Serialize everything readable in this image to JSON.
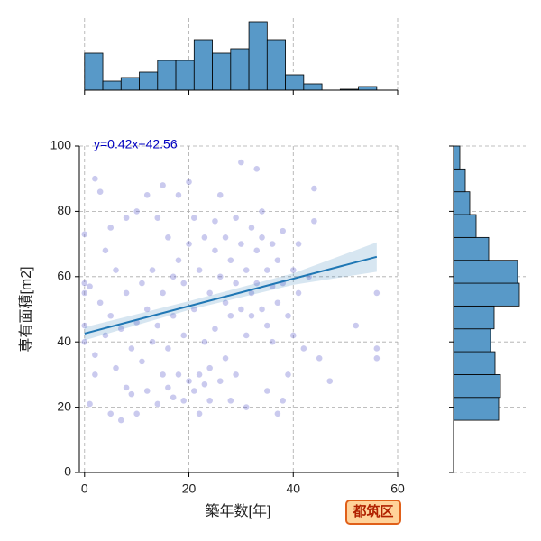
{
  "chart_data": [
    {
      "type": "scatter",
      "x_label": "築年数[年]",
      "y_label": "専有面積[m2]",
      "annotation": "y=0.42x+42.56",
      "badge": "都筑区",
      "color": "#5050c8",
      "line_color": "#1f77b4",
      "grid": true,
      "xlim": [
        -1,
        60
      ],
      "ylim": [
        0,
        100
      ],
      "xticks": [
        0,
        20,
        40,
        60
      ],
      "yticks": [
        0,
        20,
        40,
        60,
        80,
        100
      ],
      "x": [
        0,
        0,
        0,
        0,
        0,
        1,
        1,
        2,
        2,
        2,
        3,
        3,
        4,
        4,
        5,
        5,
        5,
        6,
        6,
        7,
        7,
        8,
        8,
        8,
        9,
        9,
        10,
        10,
        10,
        11,
        11,
        12,
        12,
        12,
        13,
        13,
        14,
        14,
        14,
        15,
        15,
        15,
        16,
        16,
        16,
        17,
        17,
        17,
        18,
        18,
        18,
        19,
        19,
        19,
        20,
        20,
        20,
        21,
        21,
        21,
        22,
        22,
        22,
        23,
        23,
        23,
        24,
        24,
        24,
        25,
        25,
        25,
        26,
        26,
        26,
        27,
        27,
        27,
        28,
        28,
        28,
        29,
        29,
        29,
        30,
        30,
        30,
        31,
        31,
        31,
        32,
        32,
        32,
        33,
        33,
        33,
        34,
        34,
        34,
        35,
        35,
        35,
        36,
        36,
        36,
        37,
        37,
        37,
        38,
        38,
        38,
        39,
        39,
        40,
        40,
        41,
        41,
        42,
        43,
        44,
        44,
        45,
        47,
        52,
        56,
        56,
        56
      ],
      "y": [
        73,
        58,
        55,
        45,
        40,
        21,
        57,
        36,
        30,
        90,
        52,
        86,
        42,
        68,
        18,
        48,
        75,
        32,
        62,
        16,
        44,
        55,
        26,
        78,
        38,
        24,
        46,
        80,
        18,
        58,
        34,
        25,
        50,
        85,
        40,
        62,
        21,
        45,
        78,
        30,
        88,
        55,
        72,
        38,
        26,
        60,
        23,
        48,
        30,
        85,
        65,
        22,
        42,
        58,
        28,
        70,
        89,
        25,
        50,
        78,
        30,
        18,
        62,
        40,
        72,
        27,
        55,
        32,
        22,
        68,
        77,
        44,
        28,
        60,
        85,
        72,
        52,
        35,
        65,
        22,
        48,
        78,
        58,
        30,
        70,
        50,
        95,
        62,
        42,
        20,
        75,
        55,
        48,
        68,
        58,
        93,
        80,
        50,
        72,
        62,
        45,
        25,
        57,
        70,
        40,
        65,
        52,
        18,
        22,
        74,
        58,
        48,
        30,
        62,
        42,
        55,
        70,
        38,
        60,
        87,
        77,
        35,
        28,
        45,
        55,
        35,
        38
      ],
      "regression": {
        "x": [
          0,
          56
        ],
        "y": [
          42.56,
          66.08
        ]
      },
      "band": {
        "x": [
          0,
          20,
          40,
          56
        ],
        "lower": [
          40.5,
          49.8,
          57.5,
          61.5
        ],
        "upper": [
          44.5,
          52.5,
          61,
          70.5
        ]
      }
    },
    {
      "type": "histogram",
      "orientation": "vertical",
      "color": "#5899c8",
      "grid": true,
      "bins": [
        0,
        3.5,
        7,
        10.5,
        14,
        17.5,
        21,
        24.5,
        28,
        31.5,
        35,
        38.5,
        42,
        45.5,
        49,
        52.5,
        56
      ],
      "counts": [
        41,
        10,
        14,
        20,
        33,
        33,
        56,
        41,
        46,
        76,
        56,
        17,
        7,
        0,
        1,
        4
      ],
      "xlim": [
        -1,
        60
      ],
      "xticks": [
        0,
        20,
        40,
        60
      ],
      "ylim": [
        0,
        80
      ]
    },
    {
      "type": "histogram",
      "orientation": "horizontal",
      "color": "#5899c8",
      "grid": true,
      "bins": [
        16,
        23,
        30,
        37,
        44,
        51,
        58,
        65,
        72,
        79,
        86,
        93,
        100
      ],
      "counts": [
        50,
        52,
        46,
        41,
        45,
        73,
        71,
        39,
        25,
        18,
        13,
        7
      ],
      "ylim": [
        0,
        100
      ],
      "yticks": [
        0,
        20,
        40,
        60,
        80,
        100
      ],
      "xlim": [
        0,
        80
      ]
    }
  ]
}
